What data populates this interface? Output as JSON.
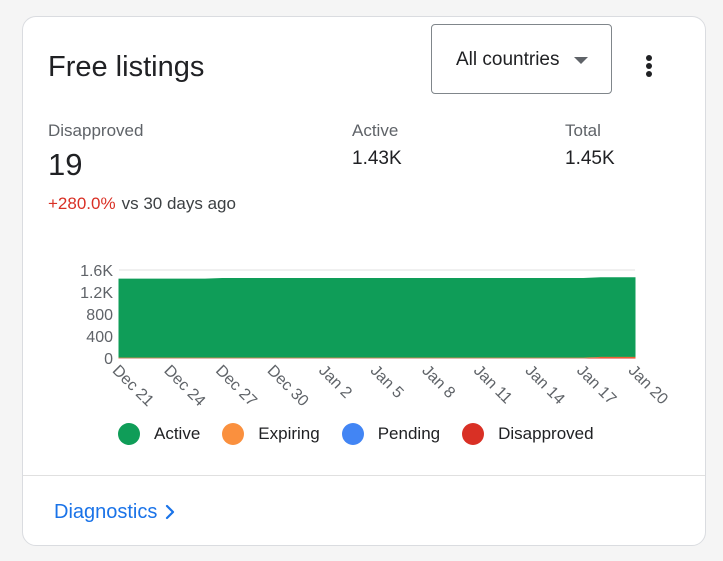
{
  "card": {
    "title": "Free listings",
    "dropdown": {
      "value": "All countries"
    }
  },
  "stats": {
    "disapproved": {
      "label": "Disapproved",
      "value": "19",
      "change": "+280.0%",
      "compare": "vs 30 days ago"
    },
    "active": {
      "label": "Active",
      "value": "1.43K"
    },
    "total": {
      "label": "Total",
      "value": "1.45K"
    }
  },
  "chart_data": {
    "type": "area",
    "stacked": true,
    "x": [
      "Dec 21",
      "Dec 22",
      "Dec 23",
      "Dec 24",
      "Dec 25",
      "Dec 26",
      "Dec 27",
      "Dec 28",
      "Dec 29",
      "Dec 30",
      "Dec 31",
      "Jan 1",
      "Jan 2",
      "Jan 3",
      "Jan 4",
      "Jan 5",
      "Jan 6",
      "Jan 7",
      "Jan 8",
      "Jan 9",
      "Jan 10",
      "Jan 11",
      "Jan 12",
      "Jan 13",
      "Jan 14",
      "Jan 15",
      "Jan 16",
      "Jan 17",
      "Jan 18",
      "Jan 19",
      "Jan 20"
    ],
    "x_ticks": [
      "Dec 21",
      "Dec 24",
      "Dec 27",
      "Dec 30",
      "Jan 2",
      "Jan 5",
      "Jan 8",
      "Jan 11",
      "Jan 14",
      "Jan 17",
      "Jan 20"
    ],
    "y_ticks": [
      "0",
      "400",
      "800",
      "1.2K",
      "1.6K"
    ],
    "ylim": [
      0,
      1600
    ],
    "grid": true,
    "series": [
      {
        "name": "Disapproved",
        "color": "#d93025",
        "values": [
          5,
          5,
          5,
          5,
          5,
          5,
          5,
          5,
          5,
          5,
          5,
          5,
          5,
          5,
          5,
          5,
          5,
          5,
          5,
          5,
          5,
          5,
          5,
          5,
          5,
          5,
          5,
          5,
          19,
          19,
          19
        ]
      },
      {
        "name": "Pending",
        "color": "#4285f4",
        "values": [
          0,
          0,
          0,
          0,
          0,
          0,
          0,
          0,
          0,
          0,
          0,
          0,
          0,
          0,
          0,
          0,
          0,
          0,
          0,
          0,
          0,
          0,
          0,
          0,
          0,
          0,
          0,
          0,
          0,
          0,
          0
        ]
      },
      {
        "name": "Expiring",
        "color": "#fa903e",
        "values": [
          10,
          10,
          10,
          10,
          10,
          10,
          10,
          10,
          10,
          10,
          10,
          10,
          10,
          10,
          10,
          10,
          10,
          10,
          10,
          10,
          10,
          10,
          10,
          10,
          10,
          10,
          10,
          10,
          10,
          10,
          10
        ]
      },
      {
        "name": "Active",
        "color": "#0f9d58",
        "values": [
          1420,
          1420,
          1420,
          1420,
          1420,
          1420,
          1430,
          1430,
          1430,
          1430,
          1430,
          1430,
          1430,
          1430,
          1430,
          1430,
          1430,
          1430,
          1430,
          1430,
          1430,
          1430,
          1430,
          1430,
          1430,
          1430,
          1430,
          1430,
          1430,
          1430,
          1430
        ]
      }
    ]
  },
  "legend": [
    {
      "label": "Active",
      "color": "#0f9d58"
    },
    {
      "label": "Expiring",
      "color": "#fa903e"
    },
    {
      "label": "Pending",
      "color": "#4285f4"
    },
    {
      "label": "Disapproved",
      "color": "#d93025"
    }
  ],
  "footer": {
    "link": "Diagnostics"
  }
}
